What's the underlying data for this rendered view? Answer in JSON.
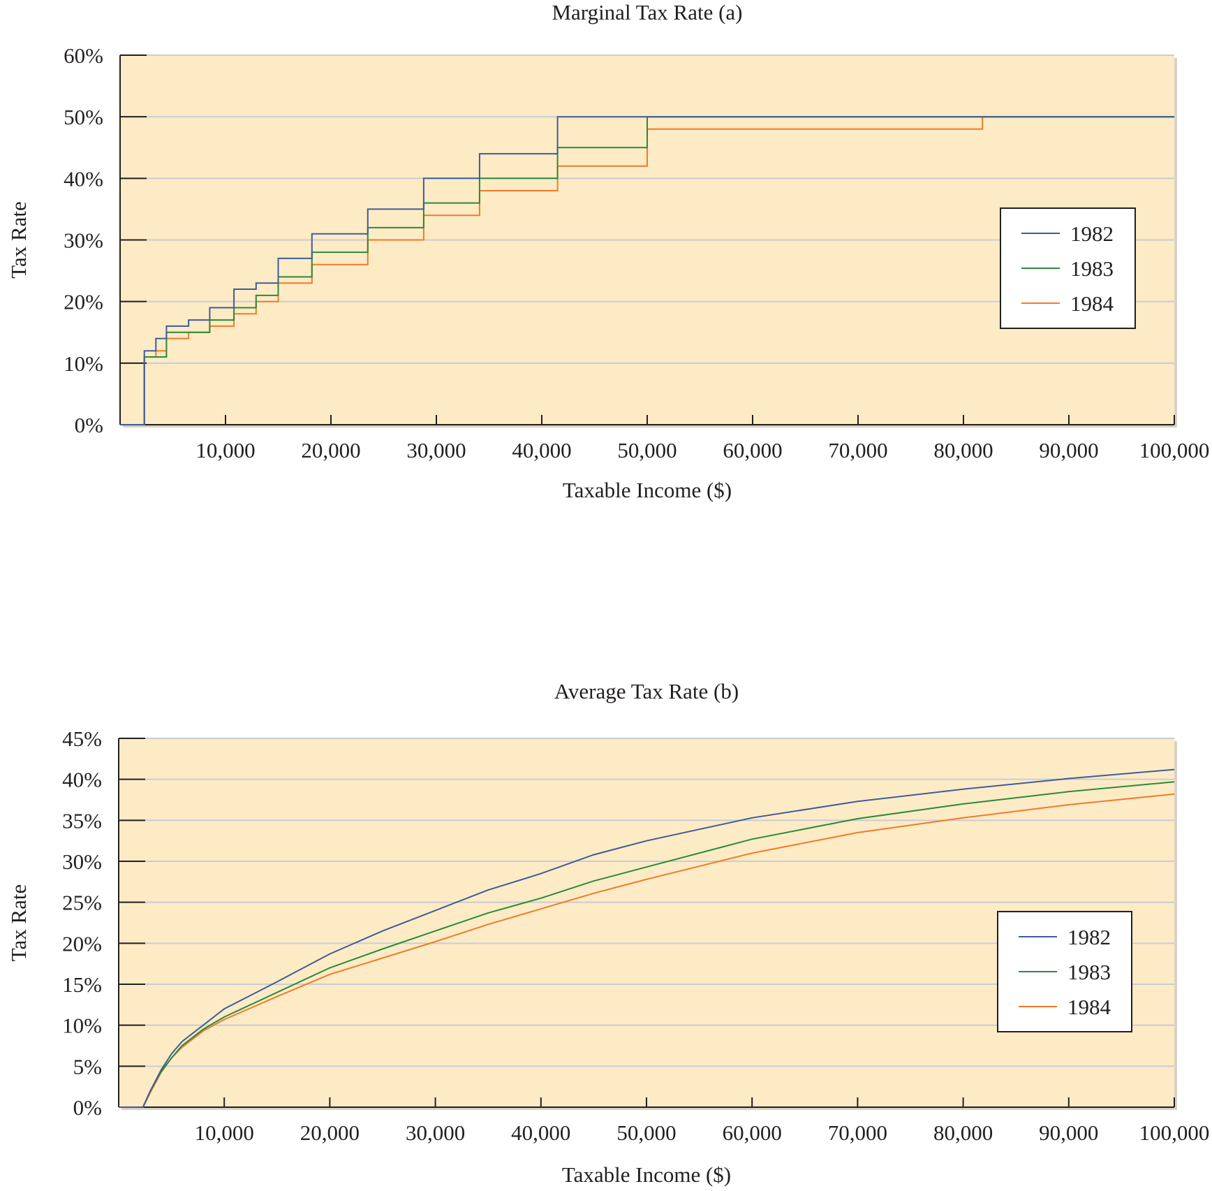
{
  "colors": {
    "plot_background": "#fdebc5",
    "series_1982": "#3e5c9a",
    "series_1983": "#2a8a3a",
    "series_1984": "#f07a2a"
  },
  "chart_data": [
    {
      "type": "line",
      "title": "Marginal Tax Rate (a)",
      "xlabel": "Taxable Income ($)",
      "ylabel": "Tax Rate",
      "xlim": [
        0,
        100000
      ],
      "ylim": [
        0,
        60
      ],
      "x_ticks": [
        10000,
        20000,
        30000,
        40000,
        50000,
        60000,
        70000,
        80000,
        90000,
        100000
      ],
      "x_tick_labels": [
        "10,000",
        "20,000",
        "30,000",
        "40,000",
        "50,000",
        "60,000",
        "70,000",
        "80,000",
        "90,000",
        "100,000"
      ],
      "y_ticks": [
        0,
        10,
        20,
        30,
        40,
        50,
        60
      ],
      "y_tick_labels": [
        "0%",
        "10%",
        "20%",
        "30%",
        "40%",
        "50%",
        "60%"
      ],
      "grid": true,
      "legend_position": "right",
      "step": true,
      "series": [
        {
          "name": "1982",
          "color_key": "series_1982",
          "points": [
            [
              0,
              0
            ],
            [
              2300,
              0
            ],
            [
              2300,
              12
            ],
            [
              3400,
              12
            ],
            [
              3400,
              14
            ],
            [
              4400,
              14
            ],
            [
              4400,
              16
            ],
            [
              6500,
              16
            ],
            [
              6500,
              17
            ],
            [
              8500,
              17
            ],
            [
              8500,
              19
            ],
            [
              10800,
              19
            ],
            [
              10800,
              22
            ],
            [
              12900,
              22
            ],
            [
              12900,
              23
            ],
            [
              15000,
              23
            ],
            [
              15000,
              27
            ],
            [
              18200,
              27
            ],
            [
              18200,
              31
            ],
            [
              23500,
              31
            ],
            [
              23500,
              35
            ],
            [
              28800,
              35
            ],
            [
              28800,
              40
            ],
            [
              34100,
              40
            ],
            [
              34100,
              44
            ],
            [
              41500,
              44
            ],
            [
              41500,
              50
            ],
            [
              100000,
              50
            ]
          ]
        },
        {
          "name": "1983",
          "color_key": "series_1983",
          "points": [
            [
              0,
              0
            ],
            [
              2300,
              0
            ],
            [
              2300,
              11
            ],
            [
              4400,
              11
            ],
            [
              4400,
              15
            ],
            [
              8500,
              15
            ],
            [
              8500,
              17
            ],
            [
              10800,
              17
            ],
            [
              10800,
              19
            ],
            [
              12900,
              19
            ],
            [
              12900,
              21
            ],
            [
              15000,
              21
            ],
            [
              15000,
              24
            ],
            [
              18200,
              24
            ],
            [
              18200,
              28
            ],
            [
              23500,
              28
            ],
            [
              23500,
              32
            ],
            [
              28800,
              32
            ],
            [
              28800,
              36
            ],
            [
              34100,
              36
            ],
            [
              34100,
              40
            ],
            [
              41500,
              40
            ],
            [
              41500,
              45
            ],
            [
              50000,
              45
            ],
            [
              50000,
              50
            ],
            [
              100000,
              50
            ]
          ]
        },
        {
          "name": "1984",
          "color_key": "series_1984",
          "points": [
            [
              0,
              0
            ],
            [
              2300,
              0
            ],
            [
              2300,
              11
            ],
            [
              3400,
              11
            ],
            [
              3400,
              12
            ],
            [
              4400,
              12
            ],
            [
              4400,
              14
            ],
            [
              6500,
              14
            ],
            [
              6500,
              15
            ],
            [
              8500,
              15
            ],
            [
              8500,
              16
            ],
            [
              10800,
              16
            ],
            [
              10800,
              18
            ],
            [
              12900,
              18
            ],
            [
              12900,
              20
            ],
            [
              15000,
              20
            ],
            [
              15000,
              23
            ],
            [
              18200,
              23
            ],
            [
              18200,
              26
            ],
            [
              23500,
              26
            ],
            [
              23500,
              30
            ],
            [
              28800,
              30
            ],
            [
              28800,
              34
            ],
            [
              34100,
              34
            ],
            [
              34100,
              38
            ],
            [
              41500,
              38
            ],
            [
              41500,
              42
            ],
            [
              50000,
              42
            ],
            [
              50000,
              48
            ],
            [
              81800,
              48
            ],
            [
              81800,
              50
            ],
            [
              100000,
              50
            ]
          ]
        }
      ]
    },
    {
      "type": "line",
      "title": "Average Tax Rate (b)",
      "xlabel": "Taxable Income ($)",
      "ylabel": "Tax Rate",
      "xlim": [
        0,
        100000
      ],
      "ylim": [
        0,
        45
      ],
      "x_ticks": [
        10000,
        20000,
        30000,
        40000,
        50000,
        60000,
        70000,
        80000,
        90000,
        100000
      ],
      "x_tick_labels": [
        "10,000",
        "20,000",
        "30,000",
        "40,000",
        "50,000",
        "60,000",
        "70,000",
        "80,000",
        "90,000",
        "100,000"
      ],
      "y_ticks": [
        0,
        5,
        10,
        15,
        20,
        25,
        30,
        35,
        40,
        45
      ],
      "y_tick_labels": [
        "0%",
        "5%",
        "10%",
        "15%",
        "20%",
        "25%",
        "30%",
        "35%",
        "40%",
        "45%"
      ],
      "grid": true,
      "legend_position": "right",
      "step": false,
      "series": [
        {
          "name": "1982",
          "color_key": "series_1982",
          "points": [
            [
              0,
              0
            ],
            [
              2300,
              0
            ],
            [
              3000,
              2.0
            ],
            [
              4000,
              4.5
            ],
            [
              5000,
              6.5
            ],
            [
              6000,
              8.0
            ],
            [
              8000,
              10.0
            ],
            [
              10000,
              12.0
            ],
            [
              15000,
              15.3
            ],
            [
              20000,
              18.7
            ],
            [
              25000,
              21.5
            ],
            [
              30000,
              24.0
            ],
            [
              35000,
              26.5
            ],
            [
              40000,
              28.5
            ],
            [
              45000,
              30.8
            ],
            [
              50000,
              32.5
            ],
            [
              60000,
              35.3
            ],
            [
              70000,
              37.3
            ],
            [
              80000,
              38.8
            ],
            [
              90000,
              40.1
            ],
            [
              100000,
              41.2
            ]
          ]
        },
        {
          "name": "1983",
          "color_key": "series_1983",
          "points": [
            [
              0,
              0
            ],
            [
              2300,
              0
            ],
            [
              3000,
              2.0
            ],
            [
              4000,
              4.3
            ],
            [
              5000,
              6.0
            ],
            [
              6000,
              7.5
            ],
            [
              8000,
              9.5
            ],
            [
              10000,
              11.0
            ],
            [
              15000,
              14.0
            ],
            [
              20000,
              17.0
            ],
            [
              25000,
              19.3
            ],
            [
              30000,
              21.5
            ],
            [
              35000,
              23.7
            ],
            [
              40000,
              25.5
            ],
            [
              45000,
              27.6
            ],
            [
              50000,
              29.3
            ],
            [
              60000,
              32.7
            ],
            [
              70000,
              35.2
            ],
            [
              80000,
              37.0
            ],
            [
              90000,
              38.5
            ],
            [
              100000,
              39.7
            ]
          ]
        },
        {
          "name": "1984",
          "color_key": "series_1984",
          "points": [
            [
              0,
              0
            ],
            [
              2300,
              0
            ],
            [
              3000,
              1.8
            ],
            [
              4000,
              4.2
            ],
            [
              5000,
              6.0
            ],
            [
              6000,
              7.3
            ],
            [
              8000,
              9.3
            ],
            [
              10000,
              10.7
            ],
            [
              15000,
              13.5
            ],
            [
              20000,
              16.2
            ],
            [
              25000,
              18.2
            ],
            [
              30000,
              20.2
            ],
            [
              35000,
              22.3
            ],
            [
              40000,
              24.2
            ],
            [
              45000,
              26.1
            ],
            [
              50000,
              27.8
            ],
            [
              60000,
              31.0
            ],
            [
              70000,
              33.5
            ],
            [
              80000,
              35.3
            ],
            [
              90000,
              36.9
            ],
            [
              100000,
              38.2
            ]
          ]
        }
      ]
    }
  ]
}
